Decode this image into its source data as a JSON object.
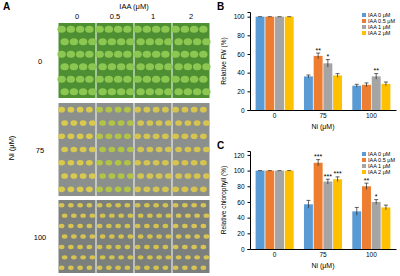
{
  "panel_a": {
    "label": "A",
    "column_title": "IAA (μM)",
    "columns": [
      "0",
      "0.5",
      "1",
      "2"
    ],
    "row_title": "Ni (μM)",
    "rows": [
      "0",
      "75",
      "100"
    ]
  },
  "chart_data": [
    {
      "type": "bar",
      "title": "B",
      "x_label": "Ni (μM)",
      "y_label": "Relative FW (%)",
      "categories": [
        "0",
        "75",
        "100"
      ],
      "series": [
        {
          "name": "IAA 0 μM",
          "color": "#5b9bd5",
          "values": [
            100,
            36,
            26
          ],
          "errors": [
            0,
            1.5,
            1.5
          ],
          "annotations": [
            null,
            null,
            null
          ]
        },
        {
          "name": "IAA 0.5 μM",
          "color": "#ed7d31",
          "values": [
            100,
            58,
            27
          ],
          "errors": [
            0,
            3,
            2
          ],
          "annotations": [
            null,
            "**",
            null
          ]
        },
        {
          "name": "IAA 1 μM",
          "color": "#a5a5a5",
          "values": [
            100,
            50,
            36
          ],
          "errors": [
            0,
            4,
            3
          ],
          "annotations": [
            null,
            "*",
            "**"
          ]
        },
        {
          "name": "IAA 2 μM",
          "color": "#ffc000",
          "values": [
            100,
            37,
            28
          ],
          "errors": [
            0,
            2,
            2
          ],
          "annotations": [
            null,
            null,
            null
          ]
        }
      ],
      "ylim": [
        0,
        105
      ],
      "yticks": [
        0,
        20,
        40,
        60,
        80,
        100
      ],
      "legend": "upper right",
      "grid": false
    },
    {
      "type": "bar",
      "title": "C",
      "x_label": "Ni (μM)",
      "y_label": "Relative chlorophyll (%)",
      "categories": [
        "0",
        "75",
        "100"
      ],
      "series": [
        {
          "name": "IAA 0 μM",
          "color": "#5b9bd5",
          "values": [
            100,
            57,
            48
          ],
          "errors": [
            0,
            5,
            5
          ],
          "annotations": [
            null,
            null,
            null
          ]
        },
        {
          "name": "IAA 0.5 μM",
          "color": "#ed7d31",
          "values": [
            100,
            110,
            80
          ],
          "errors": [
            0,
            4,
            4
          ],
          "annotations": [
            null,
            "***",
            "**"
          ]
        },
        {
          "name": "IAA 1 μM",
          "color": "#a5a5a5",
          "values": [
            100,
            86,
            60
          ],
          "errors": [
            0,
            3,
            3
          ],
          "annotations": [
            null,
            "***",
            "*"
          ]
        },
        {
          "name": "IAA 2 μM",
          "color": "#ffc000",
          "values": [
            100,
            89,
            53
          ],
          "errors": [
            0,
            3,
            3
          ],
          "annotations": [
            null,
            "***",
            null
          ]
        }
      ],
      "ylim": [
        0,
        125
      ],
      "yticks": [
        0,
        20,
        40,
        60,
        80,
        100,
        120
      ],
      "legend": "upper right",
      "grid": false
    }
  ]
}
